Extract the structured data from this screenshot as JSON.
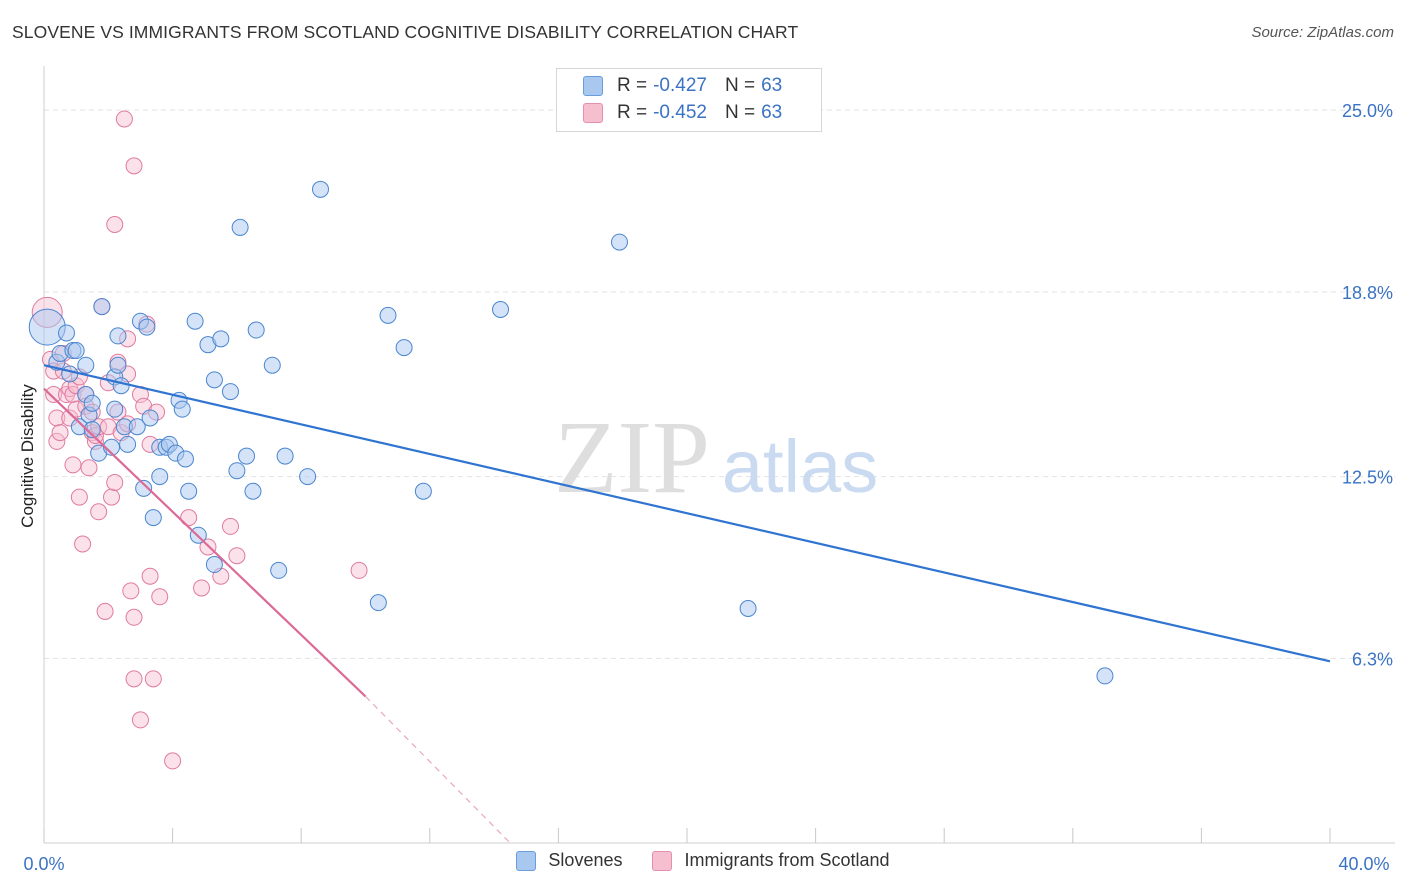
{
  "title": "SLOVENE VS IMMIGRANTS FROM SCOTLAND COGNITIVE DISABILITY CORRELATION CHART",
  "source": "Source: ZipAtlas.com",
  "watermark": {
    "zip": "ZIP",
    "atlas": "atlas"
  },
  "legend": {
    "rows": [
      {
        "r_label": "R =",
        "r_value": "-0.427",
        "n_label": "N =",
        "n_value": "63"
      },
      {
        "r_label": "R =",
        "r_value": "-0.452",
        "n_label": "N =",
        "n_value": "63"
      }
    ]
  },
  "colors": {
    "blue_fill": "#a9c8ef",
    "blue_stroke": "#4a86cf",
    "blue_line": "#2f74d0",
    "pink_fill": "#f6bfd0",
    "pink_stroke": "#e07aa0",
    "pink_line": "#dc6a97",
    "axis_text": "#3a73c4",
    "grid": "#e3e3e3"
  },
  "chart_data": {
    "type": "scatter",
    "title": "SLOVENE VS IMMIGRANTS FROM SCOTLAND COGNITIVE DISABILITY CORRELATION CHART",
    "xlabel": "",
    "ylabel": "Cognitive Disability",
    "xlim": [
      0,
      40
    ],
    "ylim": [
      0,
      26.2
    ],
    "x_tick_labels": [
      "0.0%",
      "40.0%"
    ],
    "y_ticks": [
      6.3,
      12.5,
      18.8,
      25.0
    ],
    "y_tick_labels": [
      "6.3%",
      "12.5%",
      "18.8%",
      "25.0%"
    ],
    "grid": true,
    "legend_position": "top-center",
    "series": [
      {
        "name": "Slovenes",
        "color": "#a9c8ef",
        "trend": {
          "x": [
            0,
            40
          ],
          "y": [
            16.3,
            6.2
          ]
        },
        "points": [
          [
            0.1,
            17.6
          ],
          [
            0.4,
            16.4
          ],
          [
            0.5,
            16.7
          ],
          [
            0.7,
            17.4
          ],
          [
            0.8,
            16.0
          ],
          [
            0.9,
            16.8
          ],
          [
            1.0,
            16.8
          ],
          [
            1.1,
            14.2
          ],
          [
            1.3,
            16.3
          ],
          [
            1.3,
            15.3
          ],
          [
            1.4,
            14.6
          ],
          [
            1.5,
            14.1
          ],
          [
            1.5,
            15.0
          ],
          [
            1.7,
            13.3
          ],
          [
            1.8,
            18.3
          ],
          [
            2.1,
            13.5
          ],
          [
            2.2,
            15.9
          ],
          [
            2.2,
            14.8
          ],
          [
            2.3,
            16.3
          ],
          [
            2.3,
            17.3
          ],
          [
            2.4,
            15.6
          ],
          [
            2.5,
            14.2
          ],
          [
            2.6,
            13.6
          ],
          [
            2.9,
            14.2
          ],
          [
            3.0,
            17.8
          ],
          [
            3.1,
            12.1
          ],
          [
            3.2,
            17.6
          ],
          [
            3.3,
            14.5
          ],
          [
            3.4,
            11.1
          ],
          [
            3.6,
            12.5
          ],
          [
            3.6,
            13.5
          ],
          [
            3.8,
            13.5
          ],
          [
            3.9,
            13.6
          ],
          [
            4.1,
            13.3
          ],
          [
            4.2,
            15.1
          ],
          [
            4.3,
            14.8
          ],
          [
            4.4,
            13.1
          ],
          [
            4.5,
            12.0
          ],
          [
            4.7,
            17.8
          ],
          [
            4.8,
            10.5
          ],
          [
            5.1,
            17.0
          ],
          [
            5.3,
            9.5
          ],
          [
            5.3,
            15.8
          ],
          [
            5.5,
            17.2
          ],
          [
            5.8,
            15.4
          ],
          [
            6.0,
            12.7
          ],
          [
            6.1,
            21.0
          ],
          [
            6.3,
            13.2
          ],
          [
            6.5,
            12.0
          ],
          [
            6.6,
            17.5
          ],
          [
            7.1,
            16.3
          ],
          [
            7.3,
            9.3
          ],
          [
            7.5,
            13.2
          ],
          [
            8.2,
            12.5
          ],
          [
            8.6,
            22.3
          ],
          [
            10.4,
            8.2
          ],
          [
            10.7,
            18.0
          ],
          [
            11.2,
            16.9
          ],
          [
            11.8,
            12.0
          ],
          [
            14.2,
            18.2
          ],
          [
            17.9,
            20.5
          ],
          [
            21.9,
            8.0
          ],
          [
            33.0,
            5.7
          ]
        ]
      },
      {
        "name": "Immigrants from Scotland",
        "color": "#f6bfd0",
        "trend": {
          "x": [
            0,
            10
          ],
          "y": [
            15.5,
            5.0
          ]
        },
        "trend_dashed": {
          "x": [
            10,
            14.5
          ],
          "y": [
            5.0,
            0.0
          ]
        },
        "points": [
          [
            0.1,
            18.1
          ],
          [
            0.2,
            16.5
          ],
          [
            0.3,
            16.1
          ],
          [
            0.3,
            15.3
          ],
          [
            0.4,
            13.7
          ],
          [
            0.4,
            14.5
          ],
          [
            0.5,
            14.0
          ],
          [
            0.6,
            16.7
          ],
          [
            0.6,
            16.1
          ],
          [
            0.7,
            15.3
          ],
          [
            0.8,
            15.5
          ],
          [
            0.8,
            14.5
          ],
          [
            0.9,
            12.9
          ],
          [
            0.9,
            15.3
          ],
          [
            1.0,
            14.8
          ],
          [
            1.0,
            15.6
          ],
          [
            1.1,
            15.9
          ],
          [
            1.1,
            11.8
          ],
          [
            1.2,
            10.2
          ],
          [
            1.3,
            15.3
          ],
          [
            1.3,
            14.9
          ],
          [
            1.4,
            12.8
          ],
          [
            1.5,
            14.7
          ],
          [
            1.5,
            14.0
          ],
          [
            1.6,
            13.7
          ],
          [
            1.6,
            13.9
          ],
          [
            1.7,
            11.3
          ],
          [
            1.8,
            18.3
          ],
          [
            1.7,
            14.2
          ],
          [
            1.9,
            7.9
          ],
          [
            2.0,
            15.7
          ],
          [
            2.0,
            14.2
          ],
          [
            2.1,
            11.8
          ],
          [
            2.2,
            21.1
          ],
          [
            2.2,
            12.3
          ],
          [
            2.3,
            16.4
          ],
          [
            2.3,
            14.7
          ],
          [
            2.4,
            14.0
          ],
          [
            2.5,
            24.7
          ],
          [
            2.6,
            16.0
          ],
          [
            2.6,
            17.2
          ],
          [
            2.6,
            14.3
          ],
          [
            2.7,
            8.6
          ],
          [
            2.8,
            7.7
          ],
          [
            2.8,
            5.6
          ],
          [
            2.8,
            23.1
          ],
          [
            3.0,
            15.3
          ],
          [
            3.0,
            4.2
          ],
          [
            3.1,
            14.9
          ],
          [
            3.2,
            17.7
          ],
          [
            3.3,
            9.1
          ],
          [
            3.3,
            13.6
          ],
          [
            3.4,
            5.6
          ],
          [
            3.5,
            14.7
          ],
          [
            3.6,
            8.4
          ],
          [
            4.0,
            2.8
          ],
          [
            4.5,
            11.1
          ],
          [
            4.9,
            8.7
          ],
          [
            5.1,
            10.1
          ],
          [
            5.5,
            9.1
          ],
          [
            5.8,
            10.8
          ],
          [
            6.0,
            9.8
          ],
          [
            9.8,
            9.3
          ]
        ]
      }
    ]
  },
  "bottom_legend": {
    "series1": "Slovenes",
    "series2": "Immigrants from Scotland"
  }
}
